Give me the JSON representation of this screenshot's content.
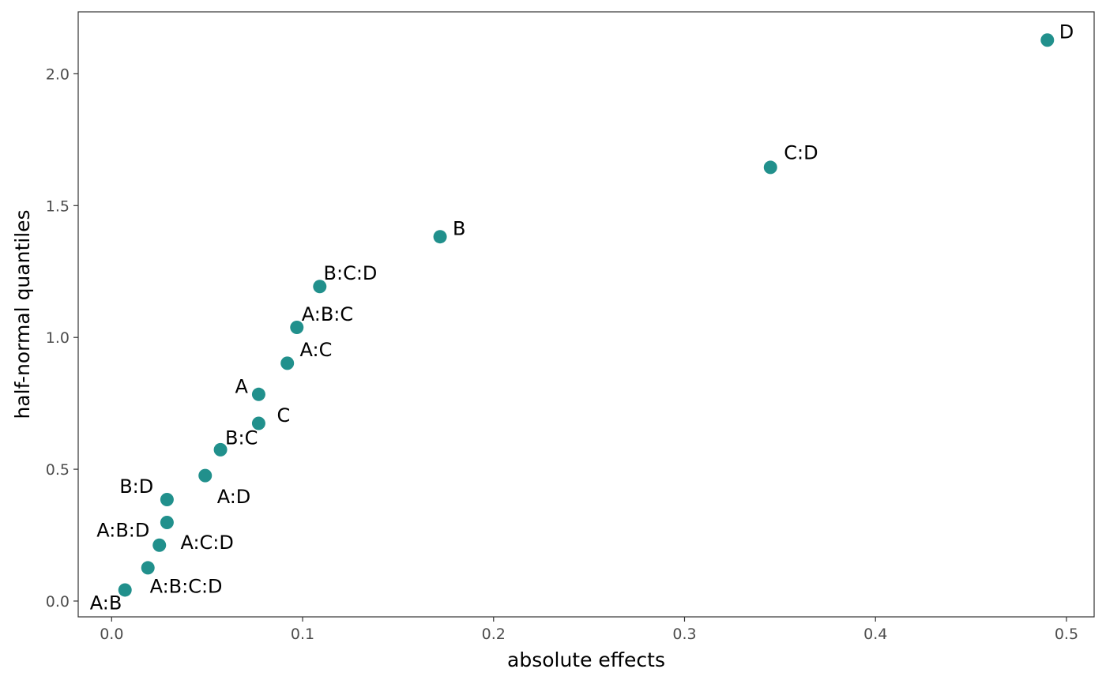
{
  "chart_data": {
    "type": "scatter",
    "title": "",
    "xlabel": "absolute effects",
    "ylabel": "half-normal quantiles",
    "xlim": [
      -0.0175,
      0.5145
    ],
    "ylim": [
      -0.06,
      2.235
    ],
    "x_ticks": [
      0.0,
      0.1,
      0.2,
      0.3,
      0.4,
      0.5
    ],
    "x_tick_labels": [
      "0.0",
      "0.1",
      "0.2",
      "0.3",
      "0.4",
      "0.5"
    ],
    "y_ticks": [
      0.0,
      0.5,
      1.0,
      1.5,
      2.0
    ],
    "y_tick_labels": [
      "0.0",
      "0.5",
      "1.0",
      "1.5",
      "2.0"
    ],
    "grid": false,
    "legend": "none",
    "point_color": "#21908C",
    "points": [
      {
        "label": "A:B",
        "x": 0.007,
        "y": 0.042,
        "label_dx": -0.01,
        "label_dy": -0.05
      },
      {
        "label": "A:B:C:D",
        "x": 0.019,
        "y": 0.126,
        "label_dx": 0.02,
        "label_dy": -0.07
      },
      {
        "label": "A:C:D",
        "x": 0.025,
        "y": 0.212,
        "label_dx": 0.025,
        "label_dy": 0.01
      },
      {
        "label": "A:B:D",
        "x": 0.029,
        "y": 0.298,
        "label_dx": -0.023,
        "label_dy": -0.03
      },
      {
        "label": "B:D",
        "x": 0.029,
        "y": 0.385,
        "label_dx": -0.016,
        "label_dy": 0.05
      },
      {
        "label": "A:D",
        "x": 0.049,
        "y": 0.476,
        "label_dx": 0.015,
        "label_dy": -0.08
      },
      {
        "label": "B:C",
        "x": 0.057,
        "y": 0.574,
        "label_dx": 0.011,
        "label_dy": 0.045
      },
      {
        "label": "C",
        "x": 0.077,
        "y": 0.674,
        "label_dx": 0.013,
        "label_dy": 0.03
      },
      {
        "label": "A",
        "x": 0.077,
        "y": 0.784,
        "label_dx": -0.009,
        "label_dy": 0.03
      },
      {
        "label": "A:C",
        "x": 0.092,
        "y": 0.902,
        "label_dx": 0.015,
        "label_dy": 0.05
      },
      {
        "label": "A:B:C",
        "x": 0.097,
        "y": 1.038,
        "label_dx": 0.016,
        "label_dy": 0.05
      },
      {
        "label": "B:C:D",
        "x": 0.109,
        "y": 1.193,
        "label_dx": 0.016,
        "label_dy": 0.05
      },
      {
        "label": "B",
        "x": 0.172,
        "y": 1.382,
        "label_dx": 0.01,
        "label_dy": 0.03
      },
      {
        "label": "C:D",
        "x": 0.345,
        "y": 1.645,
        "label_dx": 0.016,
        "label_dy": 0.055
      },
      {
        "label": "D",
        "x": 0.49,
        "y": 2.128,
        "label_dx": 0.01,
        "label_dy": 0.03
      }
    ]
  }
}
